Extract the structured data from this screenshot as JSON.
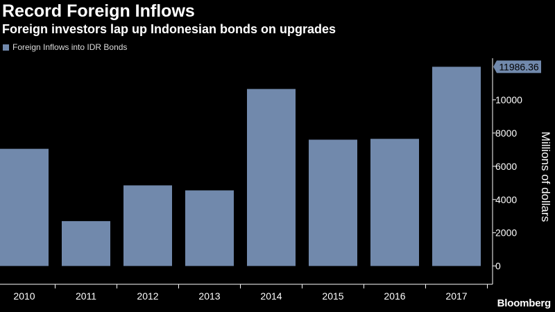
{
  "header": {
    "title": "Record Foreign Inflows",
    "subtitle": "Foreign investors lap up Indonesian bonds on upgrades"
  },
  "brand": "Bloomberg",
  "colors": {
    "background": "#000000",
    "bar": "#7189ac",
    "text": "#ffffff",
    "axis": "#ffffff"
  },
  "chart_data": {
    "type": "bar",
    "categories": [
      "2010",
      "2011",
      "2012",
      "2013",
      "2014",
      "2015",
      "2016",
      "2017"
    ],
    "series": [
      {
        "name": "Foreign Inflows into IDR Bonds",
        "values": [
          7050,
          2700,
          4850,
          4550,
          10650,
          7600,
          7650,
          11986.36
        ]
      }
    ],
    "ylabel": "Millions of dollars",
    "xlabel": "",
    "ylim": [
      -1100,
      12500
    ],
    "yticks": [
      0,
      2000,
      4000,
      6000,
      8000,
      10000
    ],
    "callout": {
      "category": "2017",
      "label": "11986.36"
    },
    "legend_position": "top-left",
    "y_axis_position": "right",
    "grid": false
  }
}
